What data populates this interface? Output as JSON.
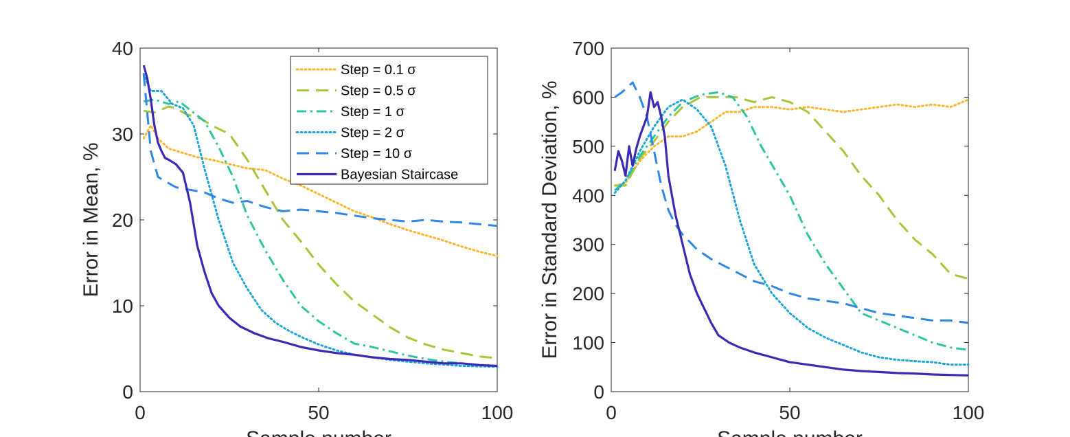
{
  "chart_data": [
    {
      "type": "line",
      "xlabel": "Sample number",
      "ylabel": "Error in Mean, %",
      "xlim": [
        0,
        100
      ],
      "ylim": [
        0,
        40
      ],
      "xticks": [
        "0",
        "50",
        "100"
      ],
      "yticks": [
        "0",
        "10",
        "20",
        "30",
        "40"
      ],
      "legend": "top-right",
      "series": [
        {
          "name": "Step = 0.1 σ",
          "color": "#fbb630",
          "dash": "dotted",
          "x": [
            1,
            3,
            5,
            8,
            12,
            16,
            20,
            25,
            30,
            35,
            40,
            45,
            50,
            55,
            60,
            65,
            70,
            75,
            80,
            85,
            90,
            95,
            100
          ],
          "y": [
            29.5,
            31,
            29.5,
            28.3,
            27.8,
            27.3,
            27,
            26.5,
            26,
            25.8,
            24.8,
            24,
            23,
            22,
            21,
            20.3,
            19.5,
            18.8,
            18.2,
            17.6,
            16.9,
            16.3,
            15.8
          ]
        },
        {
          "name": "Step = 0.5 σ",
          "color": "#a5c63b",
          "dash": "dashed",
          "x": [
            1,
            4,
            8,
            10,
            13,
            17,
            20,
            25,
            30,
            35,
            40,
            45,
            50,
            55,
            60,
            65,
            70,
            75,
            80,
            85,
            90,
            95,
            100
          ],
          "y": [
            32.7,
            32.5,
            33.2,
            33,
            32.3,
            31.8,
            31,
            30,
            27,
            23.5,
            20,
            17.5,
            14.8,
            12.5,
            10.5,
            9,
            7.5,
            6.3,
            5.5,
            4.9,
            4.5,
            4.1,
            3.9
          ]
        },
        {
          "name": "Step = 1 σ",
          "color": "#2ec4a0",
          "dash": "dashdot",
          "x": [
            1,
            4,
            8,
            11,
            14,
            18,
            22,
            26,
            30,
            35,
            40,
            45,
            50,
            55,
            60,
            65,
            70,
            75,
            80,
            85,
            90,
            95,
            100
          ],
          "y": [
            33.8,
            34,
            33.5,
            33.8,
            32.8,
            31.5,
            28.5,
            25,
            20.5,
            16.5,
            13,
            10,
            8.2,
            6.8,
            5.6,
            5.2,
            4.7,
            4.2,
            3.8,
            3.5,
            3.3,
            3.1,
            3
          ]
        },
        {
          "name": "Step = 2 σ",
          "color": "#1ba5d8",
          "dash": "dotted",
          "x": [
            1,
            3,
            6,
            9,
            12,
            15,
            18,
            22,
            26,
            30,
            34,
            38,
            42,
            46,
            50,
            55,
            60,
            65,
            70,
            80,
            90,
            100
          ],
          "y": [
            37,
            35,
            35,
            33.5,
            33,
            31,
            26,
            20,
            15,
            12,
            9.5,
            8,
            7,
            6.2,
            5.5,
            4.8,
            4.3,
            4,
            3.7,
            3.3,
            3,
            2.9
          ]
        },
        {
          "name": "Step = 10 σ",
          "color": "#2f87e6",
          "dash": "dashed",
          "x": [
            1,
            3,
            5,
            7,
            10,
            14,
            18,
            22,
            26,
            30,
            35,
            40,
            45,
            50,
            55,
            60,
            65,
            70,
            75,
            80,
            85,
            90,
            95,
            100
          ],
          "y": [
            37,
            28,
            25,
            24.5,
            23.8,
            23.5,
            23.2,
            22.5,
            22,
            22.2,
            21.5,
            21,
            21.2,
            21,
            20.8,
            20.5,
            20.2,
            20,
            19.8,
            20,
            19.8,
            19.7,
            19.5,
            19.3
          ]
        },
        {
          "name": "Bayesian Staircase",
          "color": "#3c2ab4",
          "dash": "solid",
          "x": [
            1,
            2,
            3,
            4,
            5,
            6,
            7,
            8,
            10,
            12,
            14,
            16,
            18,
            20,
            22,
            25,
            28,
            32,
            36,
            40,
            45,
            50,
            55,
            60,
            65,
            70,
            75,
            80,
            85,
            90,
            95,
            100
          ],
          "y": [
            38,
            36.5,
            34,
            31,
            29,
            28,
            27.2,
            27,
            26.5,
            25.5,
            22,
            17,
            14,
            11.5,
            10,
            8.6,
            7.6,
            6.8,
            6.2,
            5.8,
            5.2,
            4.8,
            4.5,
            4.3,
            4,
            3.8,
            3.7,
            3.5,
            3.3,
            3.3,
            3.1,
            3
          ]
        }
      ]
    },
    {
      "type": "line",
      "xlabel": "Sample number",
      "ylabel": "Error in Standard Deviation, %",
      "xlim": [
        0,
        100
      ],
      "ylim": [
        0,
        700
      ],
      "xticks": [
        "0",
        "50",
        "100"
      ],
      "yticks": [
        "0",
        "100",
        "200",
        "300",
        "400",
        "500",
        "600",
        "700"
      ],
      "series": [
        {
          "name": "Step = 0.1 σ",
          "color": "#fbb630",
          "dash": "dotted",
          "x": [
            1,
            4,
            8,
            12,
            16,
            20,
            24,
            28,
            32,
            36,
            40,
            45,
            50,
            55,
            60,
            65,
            70,
            75,
            80,
            85,
            90,
            95,
            100
          ],
          "y": [
            420,
            425,
            470,
            500,
            520,
            520,
            530,
            550,
            570,
            570,
            580,
            580,
            575,
            580,
            575,
            570,
            575,
            580,
            585,
            580,
            585,
            580,
            595
          ]
        },
        {
          "name": "Step = 0.5 σ",
          "color": "#a5c63b",
          "dash": "dashed",
          "x": [
            1,
            4,
            8,
            12,
            16,
            20,
            25,
            30,
            35,
            40,
            45,
            50,
            55,
            60,
            65,
            70,
            75,
            80,
            85,
            90,
            95,
            100
          ],
          "y": [
            420,
            420,
            475,
            510,
            550,
            580,
            600,
            600,
            600,
            590,
            600,
            590,
            570,
            530,
            490,
            440,
            400,
            350,
            310,
            280,
            240,
            230
          ]
        },
        {
          "name": "Step = 1 σ",
          "color": "#2ec4a0",
          "dash": "dashdot",
          "x": [
            1,
            4,
            8,
            12,
            16,
            20,
            25,
            30,
            34,
            38,
            42,
            46,
            50,
            55,
            60,
            65,
            70,
            75,
            80,
            85,
            90,
            95,
            100
          ],
          "y": [
            410,
            430,
            480,
            520,
            560,
            590,
            605,
            610,
            600,
            560,
            500,
            450,
            400,
            320,
            260,
            210,
            160,
            145,
            130,
            115,
            100,
            90,
            85
          ]
        },
        {
          "name": "Step = 2 σ",
          "color": "#1ba5d8",
          "dash": "dotted",
          "x": [
            1,
            4,
            8,
            12,
            16,
            20,
            24,
            28,
            32,
            36,
            40,
            45,
            50,
            55,
            60,
            65,
            70,
            75,
            80,
            85,
            90,
            95,
            100
          ],
          "y": [
            405,
            430,
            490,
            540,
            580,
            595,
            575,
            540,
            460,
            350,
            260,
            200,
            160,
            130,
            110,
            95,
            80,
            70,
            65,
            62,
            60,
            55,
            55
          ]
        },
        {
          "name": "Step = 10 σ",
          "color": "#2f87e6",
          "dash": "dashed",
          "x": [
            1,
            3,
            6,
            8,
            10,
            12,
            14,
            16,
            18,
            20,
            24,
            28,
            32,
            36,
            40,
            45,
            50,
            55,
            60,
            65,
            70,
            75,
            80,
            85,
            90,
            95,
            100
          ],
          "y": [
            600,
            610,
            630,
            600,
            560,
            490,
            420,
            370,
            340,
            320,
            290,
            270,
            255,
            240,
            225,
            215,
            200,
            190,
            185,
            180,
            170,
            160,
            155,
            150,
            145,
            145,
            140
          ]
        },
        {
          "name": "Bayesian Staircase",
          "color": "#3c2ab4",
          "dash": "solid",
          "x": [
            1,
            2,
            3,
            4,
            5,
            6,
            7,
            8,
            9,
            10,
            11,
            12,
            13,
            14,
            15,
            16,
            18,
            20,
            22,
            24,
            26,
            28,
            30,
            33,
            36,
            40,
            45,
            50,
            55,
            60,
            65,
            70,
            75,
            80,
            85,
            90,
            95,
            100
          ],
          "y": [
            450,
            490,
            470,
            440,
            500,
            460,
            495,
            520,
            540,
            560,
            610,
            580,
            590,
            560,
            520,
            440,
            360,
            300,
            240,
            200,
            170,
            140,
            115,
            100,
            90,
            80,
            70,
            60,
            55,
            50,
            45,
            42,
            40,
            38,
            37,
            35,
            34,
            33
          ]
        }
      ]
    }
  ]
}
